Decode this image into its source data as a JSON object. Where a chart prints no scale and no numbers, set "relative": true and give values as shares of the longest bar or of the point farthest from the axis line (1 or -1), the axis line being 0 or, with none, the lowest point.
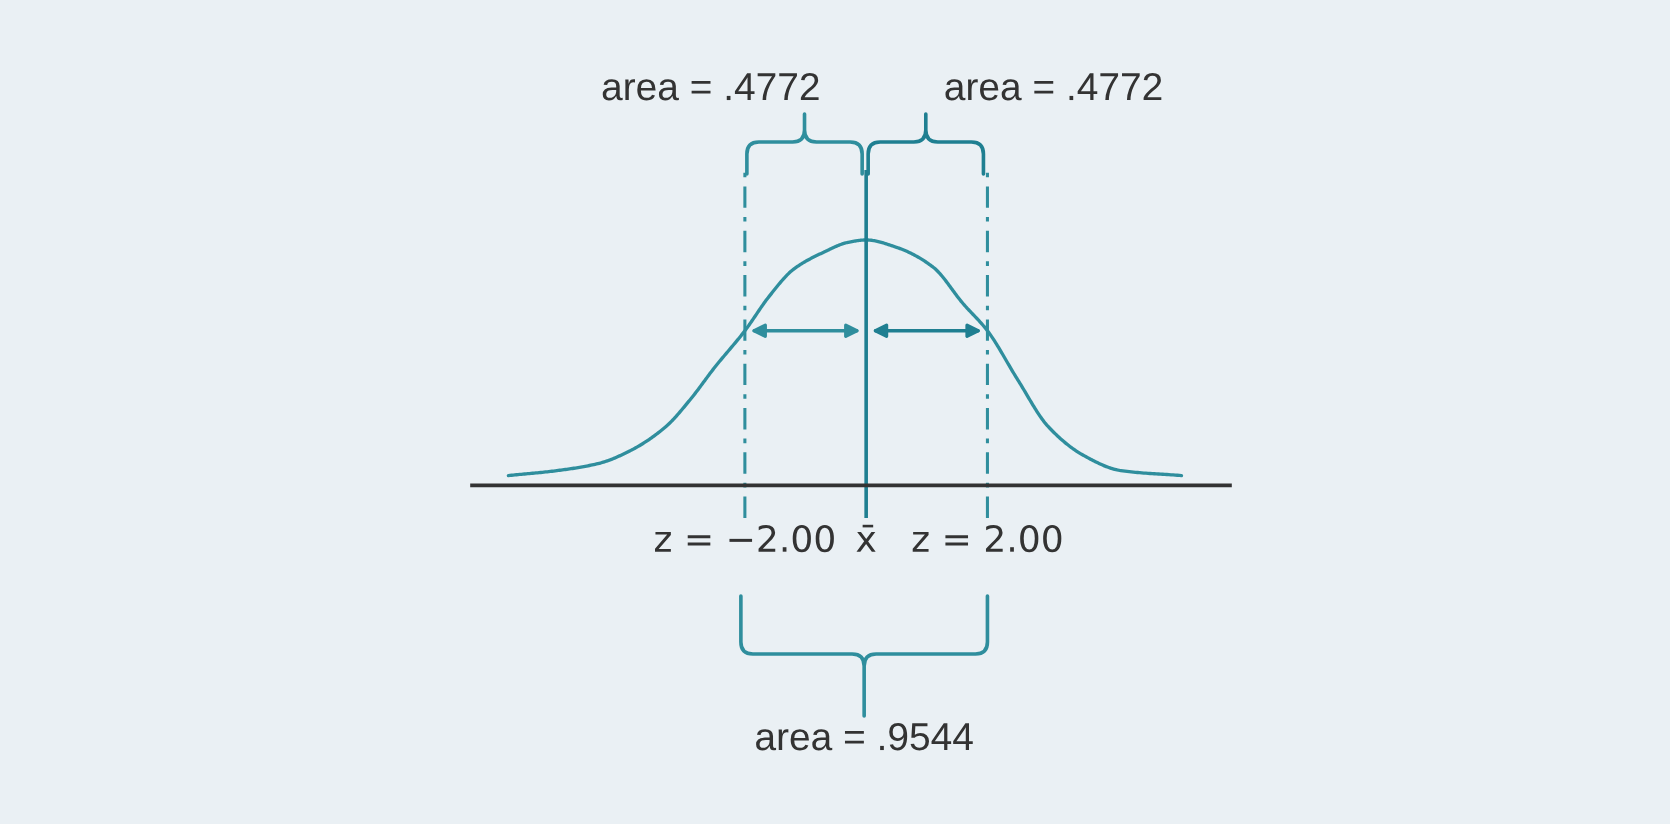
{
  "chart_data": {
    "type": "line",
    "relative": true,
    "x": [
      -5.9,
      -5.1,
      -4.4,
      -3.9,
      -3.3,
      -2.9,
      -2.5,
      -2.0,
      -1.6,
      -1.2,
      -0.7,
      -0.3,
      0,
      0.5,
      1.1,
      1.6,
      2.0,
      2.5,
      3.0,
      3.6,
      4.2,
      5.2
    ],
    "series": [
      {
        "color": "#2f8e9d",
        "values": [
          0.04,
          0.06,
          0.09,
          0.14,
          0.24,
          0.35,
          0.48,
          0.63,
          0.77,
          0.88,
          0.95,
          0.99,
          1,
          0.97,
          0.89,
          0.74,
          0.63,
          0.43,
          0.24,
          0.12,
          0.06,
          0.04
        ]
      }
    ],
    "xlim": [
      -6.5,
      6.0
    ],
    "xticks": [
      {
        "value": -2,
        "label": "z = −2.00"
      },
      {
        "value": 0,
        "label": "x̄"
      },
      {
        "value": 2,
        "label": "z = 2.00"
      }
    ],
    "ref_lines": [
      {
        "axis": "x",
        "value": -2,
        "color": "#2f8e9d",
        "line_style": "dashdot"
      },
      {
        "axis": "x",
        "value": 0,
        "color": "#1f7f91",
        "line_style": "solid"
      },
      {
        "axis": "x",
        "value": 2,
        "color": "#2f8e9d",
        "line_style": "dashdot"
      }
    ],
    "annotations": [
      "area = .4772",
      "area = .4772",
      "area = .9544"
    ]
  }
}
